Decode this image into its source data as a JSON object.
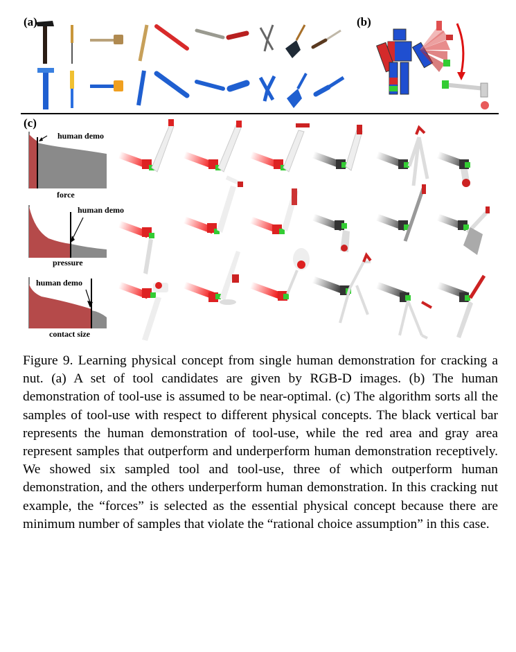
{
  "panels": {
    "a": {
      "label": "(a)"
    },
    "b": {
      "label": "(b)"
    },
    "c": {
      "label": "(c)",
      "plots": [
        {
          "annotation": "human demo",
          "xlabel": "force"
        },
        {
          "annotation": "human demo",
          "xlabel": "pressure"
        },
        {
          "annotation": "human demo",
          "xlabel": "contact size"
        }
      ]
    }
  },
  "colors": {
    "outperform_area": "#b54a4a",
    "underperform_area": "#8a8a8a",
    "human_demo_bar": "#000000",
    "tool_blue": "#1f5fd0",
    "tool_red": "#dd2222",
    "tool_green": "#33cc33"
  },
  "caption": {
    "number": "Figure 9.",
    "text": "Learning physical concept from single human demonstration for cracking a nut. (a) A set of tool candidates are given by RGB-D images. (b) The human demonstration of tool-use is assumed to be near-optimal. (c) The algorithm sorts all the samples of tool-use with respect to different physical concepts. The black vertical bar represents the human demonstration of tool-use, while the red area and gray area represent samples that outperform and underperform human demonstration receptively. We showed six sampled tool and tool-use, three of which outperform human demonstration, and the others underperform human demonstration. In this cracking nut example, the “forces” is selected as the essential physical concept because there are minimum number of samples that violate the “rational choice assumption” in this case."
  }
}
